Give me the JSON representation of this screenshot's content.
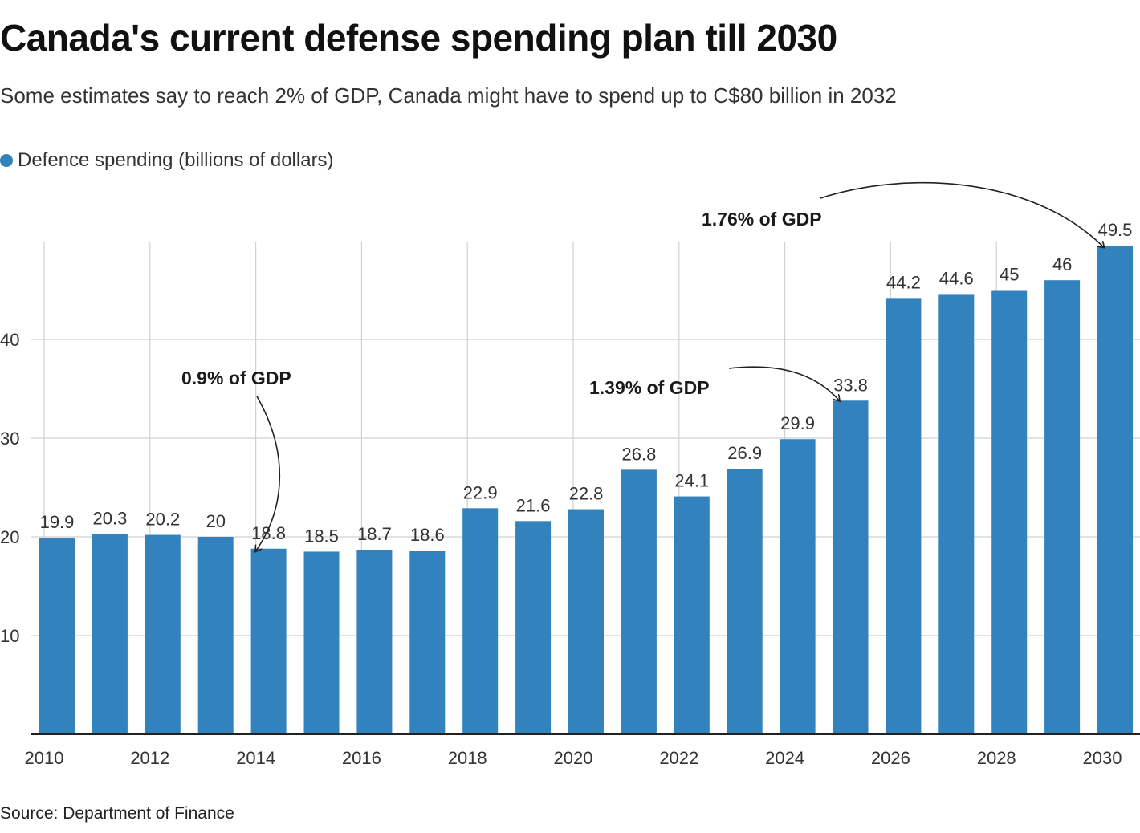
{
  "header": {
    "title": "Canada's current defense spending plan till 2030",
    "subtitle": "Some estimates say to reach 2% of GDP, Canada might have to spend up to C$80 billion in 2032"
  },
  "legend": {
    "label": "Defence spending (billions of dollars)",
    "color": "#3182bd"
  },
  "footer": {
    "source": "Source: Department of Finance"
  },
  "chart_data": {
    "type": "bar",
    "title": "Canada's current defense spending plan till 2030",
    "xlabel": "",
    "ylabel": "",
    "series_name": "Defence spending (billions of dollars)",
    "color": "#3182bd",
    "categories": [
      2010,
      2011,
      2012,
      2013,
      2014,
      2015,
      2016,
      2017,
      2018,
      2019,
      2020,
      2021,
      2022,
      2023,
      2024,
      2025,
      2026,
      2027,
      2028,
      2029,
      2030
    ],
    "values": [
      19.9,
      20.3,
      20.2,
      20,
      18.8,
      18.5,
      18.7,
      18.6,
      22.9,
      21.6,
      22.8,
      26.8,
      24.1,
      26.9,
      29.9,
      33.8,
      44.2,
      44.6,
      45,
      46,
      49.5
    ],
    "data_labels": [
      "19.9",
      "20.3",
      "20.2",
      "20",
      "18.8",
      "18.5",
      "18.7",
      "18.6",
      "22.9",
      "21.6",
      "22.8",
      "26.8",
      "24.1",
      "26.9",
      "29.9",
      "33.8",
      "44.2",
      "44.6",
      "45",
      "46",
      "49.5"
    ],
    "ylim": [
      0,
      50
    ],
    "y_ticks": [
      10,
      20,
      30,
      40
    ],
    "x_ticks": [
      2010,
      2012,
      2014,
      2016,
      2018,
      2020,
      2022,
      2024,
      2026,
      2028,
      2030
    ],
    "grid": true,
    "legend_position": "top-left",
    "annotations": [
      {
        "text": "0.9% of GDP",
        "target_year": 2014
      },
      {
        "text": "1.39% of GDP",
        "target_year": 2025
      },
      {
        "text": "1.76% of GDP",
        "target_year": 2030
      }
    ]
  }
}
